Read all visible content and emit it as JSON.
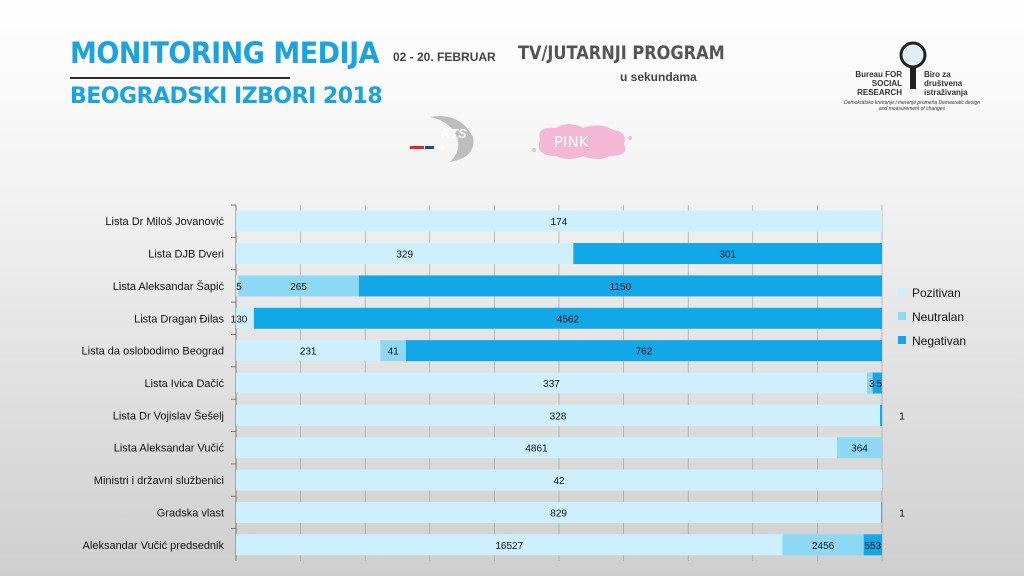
{
  "header": {
    "title_line1": "MONITORING MEDIJA",
    "title_line2": "BEOGRADSKI IZBORI 2018",
    "date_range": "02 - 20. FEBRUAR",
    "program": "TV/JUTARNJI PROGRAM",
    "unit": "u sekundama"
  },
  "logos": {
    "channel1": "RTS",
    "channel2": "PINK",
    "org_en": "Bureau FOR SOCIAL RESEARCH",
    "org_sr": "Biro za društvena istraživanja",
    "org_tagline": "Demokratsko kreiranje i merenje promena Democratic design and measurement of changes"
  },
  "colors": {
    "pozitivan": "#cdf0fc",
    "neutralan": "#8dd9f5",
    "negativan": "#12a8e8"
  },
  "chart_data": {
    "type": "bar",
    "orientation": "horizontal",
    "stacked": "percent",
    "categories": [
      "Lista Dr Miloš Jovanović",
      "Lista DJB Dveri",
      "Lista Aleksandar Šapić",
      "Lista Dragan Đilas",
      "Lista da oslobodimo Beograd",
      "Lista Ivica Dačić",
      "Lista Dr Vojislav Šešelj",
      "Lista Aleksandar Vučić",
      "Ministri i državni službenici",
      "Gradska vlast",
      "Aleksandar Vučić predsednik"
    ],
    "series": [
      {
        "name": "Pozitivan",
        "values": [
          174,
          329,
          5,
          130,
          231,
          337,
          328,
          4861,
          42,
          829,
          16527
        ]
      },
      {
        "name": "Neutralan",
        "values": [
          0,
          0,
          265,
          0,
          41,
          3,
          0,
          364,
          0,
          0,
          2456
        ]
      },
      {
        "name": "Negativan",
        "values": [
          0,
          301,
          1150,
          4562,
          762,
          5,
          1,
          0,
          0,
          1,
          553
        ]
      }
    ],
    "legend_position": "right",
    "grid": true
  }
}
